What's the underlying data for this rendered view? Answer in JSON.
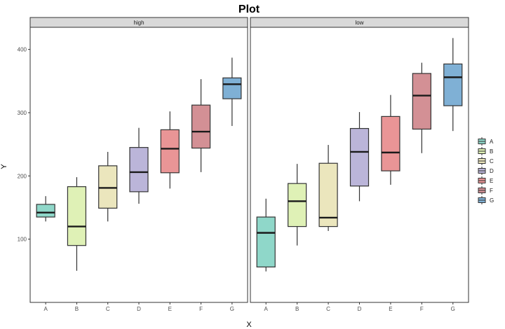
{
  "chart_data": {
    "type": "boxplot",
    "title": "Plot",
    "xlabel": "X",
    "ylabel": "Y",
    "ylim": [
      0,
      435
    ],
    "yticks": [
      100,
      200,
      300,
      400
    ],
    "categories": [
      "A",
      "B",
      "C",
      "D",
      "E",
      "F",
      "G"
    ],
    "colors": {
      "A": "#8fd7c9",
      "B": "#dff1b6",
      "C": "#ebe6bd",
      "D": "#bbb5d9",
      "E": "#e99596",
      "F": "#d39095",
      "G": "#7fb0d5"
    },
    "legend": {
      "position": "right",
      "entries": [
        "A",
        "B",
        "C",
        "D",
        "E",
        "F",
        "G"
      ]
    },
    "grid": false,
    "panels": [
      {
        "label": "high",
        "boxes": [
          {
            "category": "A",
            "min": 128,
            "q1": 135,
            "median": 142,
            "q3": 155,
            "max": 168
          },
          {
            "category": "B",
            "min": 50,
            "q1": 90,
            "median": 120,
            "q3": 183,
            "max": 198
          },
          {
            "category": "C",
            "min": 128,
            "q1": 149,
            "median": 181,
            "q3": 216,
            "max": 238
          },
          {
            "category": "D",
            "min": 156,
            "q1": 175,
            "median": 206,
            "q3": 245,
            "max": 276
          },
          {
            "category": "E",
            "min": 180,
            "q1": 205,
            "median": 243,
            "q3": 273,
            "max": 302
          },
          {
            "category": "F",
            "min": 206,
            "q1": 244,
            "median": 270,
            "q3": 312,
            "max": 353
          },
          {
            "category": "G",
            "min": 279,
            "q1": 322,
            "median": 345,
            "q3": 355,
            "max": 387
          }
        ]
      },
      {
        "label": "low",
        "boxes": [
          {
            "category": "A",
            "min": 49,
            "q1": 56,
            "median": 110,
            "q3": 135,
            "max": 164
          },
          {
            "category": "B",
            "min": 90,
            "q1": 120,
            "median": 160,
            "q3": 188,
            "max": 219
          },
          {
            "category": "C",
            "min": 113,
            "q1": 120,
            "median": 134,
            "q3": 220,
            "max": 249
          },
          {
            "category": "D",
            "min": 160,
            "q1": 184,
            "median": 238,
            "q3": 275,
            "max": 301
          },
          {
            "category": "E",
            "min": 186,
            "q1": 208,
            "median": 237,
            "q3": 294,
            "max": 328
          },
          {
            "category": "F",
            "min": 236,
            "q1": 274,
            "median": 327,
            "q3": 362,
            "max": 379
          },
          {
            "category": "G",
            "min": 271,
            "q1": 311,
            "median": 356,
            "q3": 377,
            "max": 418
          }
        ]
      }
    ]
  }
}
